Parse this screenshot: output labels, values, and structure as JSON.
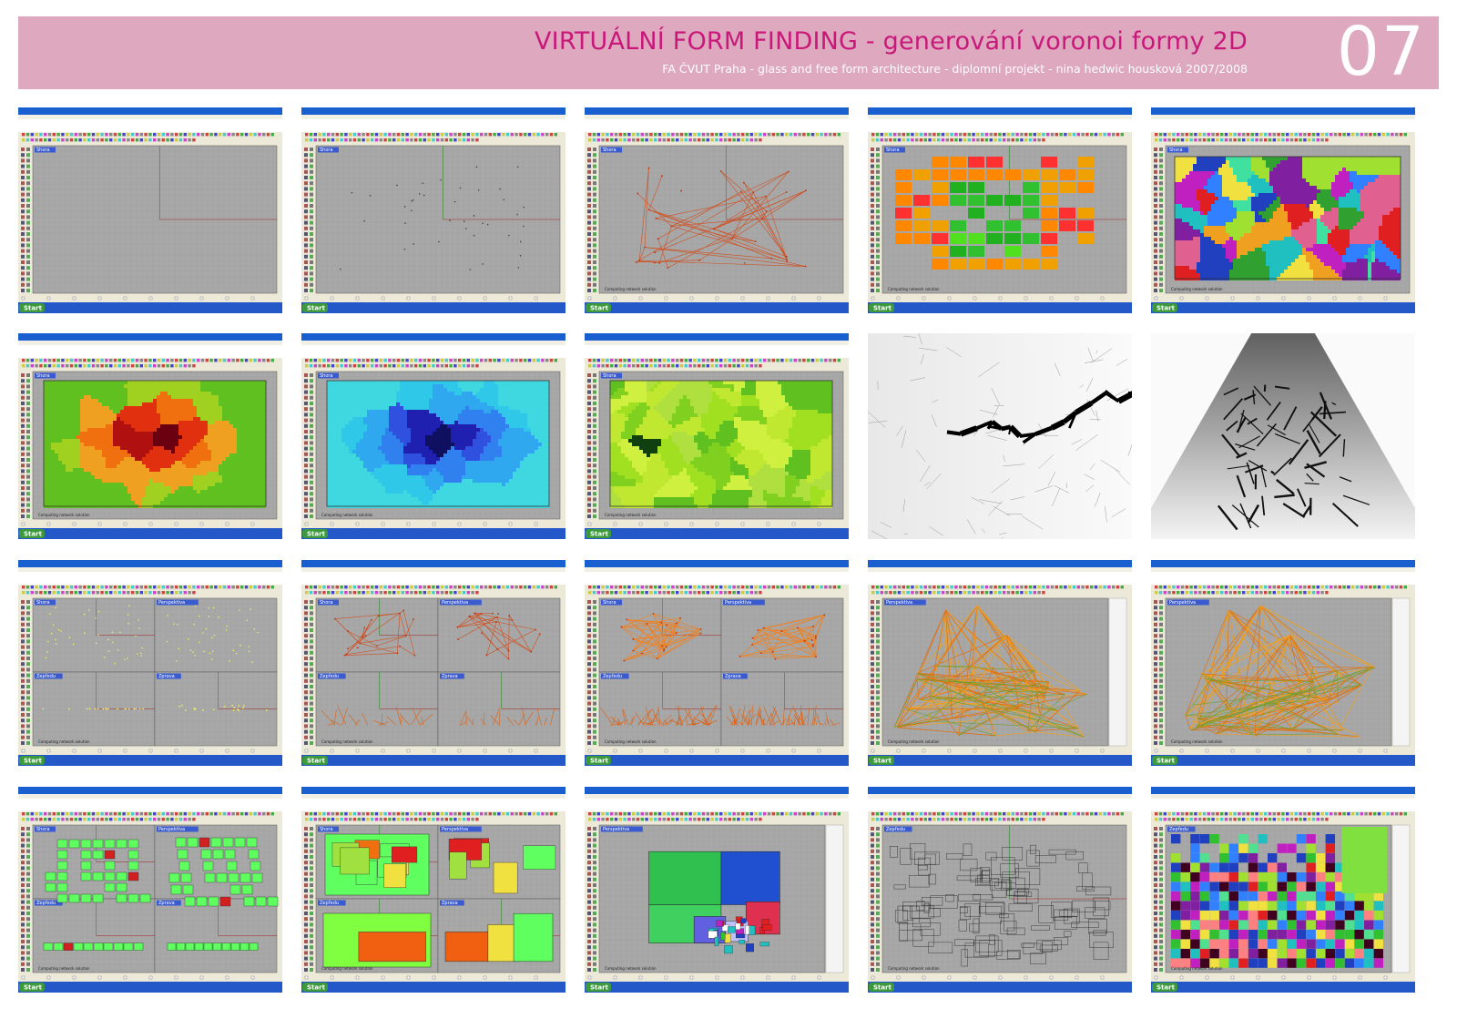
{
  "header": {
    "title": "VIRTUÁLNÍ FORM FINDING - generování voronoi formy 2D",
    "subtitle": "FA ČVUT Praha - glass and free form architecture  - diplomní projekt - nina hedwic housková 2007/2008",
    "page_number": "07"
  },
  "colors": {
    "banner": "#dea8be",
    "title": "#c8187a",
    "viewport": "#a8a8a8",
    "window_title_bar": "#1a5fd0",
    "taskbar": "#2457c8"
  },
  "app": {
    "start_label": "Start",
    "status_computing": "Computing network solution"
  },
  "panels": [
    {
      "id": 1,
      "kind": "rhino",
      "viewports": [
        "Shora"
      ],
      "content": "empty"
    },
    {
      "id": 2,
      "kind": "rhino",
      "viewports": [
        "Shora"
      ],
      "content": "points"
    },
    {
      "id": 3,
      "kind": "rhino",
      "viewports": [
        "Shora"
      ],
      "content": "network"
    },
    {
      "id": 4,
      "kind": "rhino",
      "viewports": [
        "Shora"
      ],
      "content": "squares"
    },
    {
      "id": 5,
      "kind": "rhino",
      "viewports": [
        "Shora"
      ],
      "content": "voronoi_multi"
    },
    {
      "id": 6,
      "kind": "rhino",
      "viewports": [
        "Shora"
      ],
      "content": "voronoi_heat"
    },
    {
      "id": 7,
      "kind": "rhino",
      "viewports": [
        "Shora"
      ],
      "content": "voronoi_blue"
    },
    {
      "id": 8,
      "kind": "rhino",
      "viewports": [
        "Shora"
      ],
      "content": "voronoi_green"
    },
    {
      "id": 9,
      "kind": "render",
      "content": "cracks_top"
    },
    {
      "id": 10,
      "kind": "render",
      "content": "cracks_perspective"
    },
    {
      "id": 11,
      "kind": "rhino",
      "viewports": [
        "Shora",
        "Perspektiva",
        "Zepředu",
        "Zprava"
      ],
      "content": "points_4view"
    },
    {
      "id": 12,
      "kind": "rhino",
      "viewports": [
        "Shora",
        "Perspektiva",
        "Zepředu",
        "Zprava"
      ],
      "content": "network_4view"
    },
    {
      "id": 13,
      "kind": "rhino",
      "viewports": [
        "Shora",
        "Perspektiva",
        "Zepředu",
        "Zprava"
      ],
      "content": "network_dense_4view"
    },
    {
      "id": 14,
      "kind": "rhino",
      "viewports": [
        "Perspektiva"
      ],
      "content": "tent"
    },
    {
      "id": 15,
      "kind": "rhino",
      "viewports": [
        "Perspektiva"
      ],
      "content": "tent"
    },
    {
      "id": 16,
      "kind": "rhino",
      "viewports": [
        "Shora",
        "Perspektiva",
        "Zepředu",
        "Zprava"
      ],
      "content": "boxes_4view"
    },
    {
      "id": 17,
      "kind": "rhino",
      "viewports": [
        "Shora",
        "Perspektiva",
        "Zepředu",
        "Zprava"
      ],
      "content": "bigboxes_4view"
    },
    {
      "id": 18,
      "kind": "rhino",
      "viewports": [
        "Perspektiva"
      ],
      "content": "bigboxes_persp"
    },
    {
      "id": 19,
      "kind": "rhino",
      "viewports": [
        "Zepředu"
      ],
      "content": "outlines"
    },
    {
      "id": 20,
      "kind": "rhino",
      "viewports": [
        "Zepředu"
      ],
      "content": "colorblocks"
    }
  ]
}
